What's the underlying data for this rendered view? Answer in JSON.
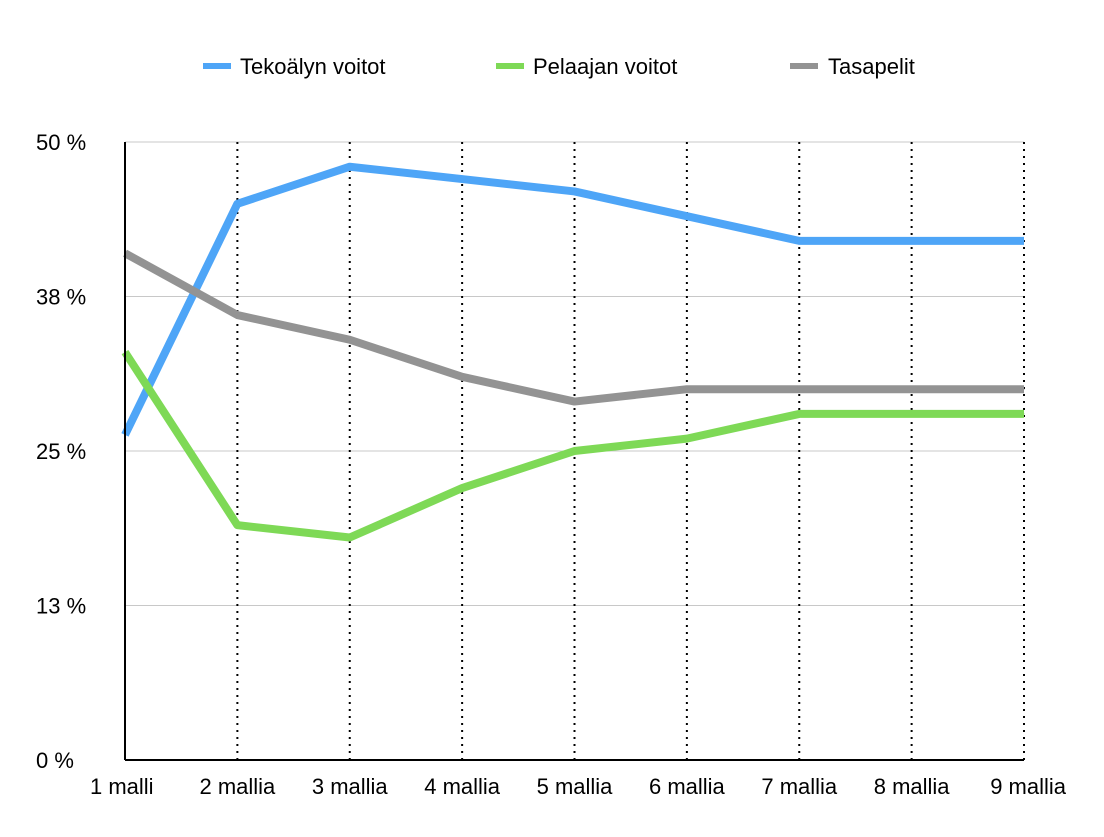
{
  "chart_data": {
    "type": "line",
    "title": "",
    "xlabel": "",
    "ylabel": "",
    "categories": [
      "1 malli",
      "2 mallia",
      "3 mallia",
      "4 mallia",
      "5 mallia",
      "6 mallia",
      "7 mallia",
      "8 mallia",
      "9 mallia"
    ],
    "y_ticks": [
      "0 %",
      "13 %",
      "25 %",
      "38 %",
      "50 %"
    ],
    "ylim": [
      0,
      50
    ],
    "grid": true,
    "legend_position": "top",
    "series": [
      {
        "name": "Tekoälyn voitot",
        "color": "#4EA5F7",
        "values": [
          26.3,
          45.0,
          48.0,
          47.0,
          46.0,
          44.0,
          42.0,
          42.0,
          42.0
        ]
      },
      {
        "name": "Pelaajan voitot",
        "color": "#7ED956",
        "values": [
          33.0,
          19.0,
          18.0,
          22.0,
          25.0,
          26.0,
          28.0,
          28.0,
          28.0
        ]
      },
      {
        "name": "Tasapelit",
        "color": "#939393",
        "values": [
          41.0,
          36.0,
          34.0,
          31.0,
          29.0,
          30.0,
          30.0,
          30.0,
          30.0
        ]
      }
    ]
  }
}
